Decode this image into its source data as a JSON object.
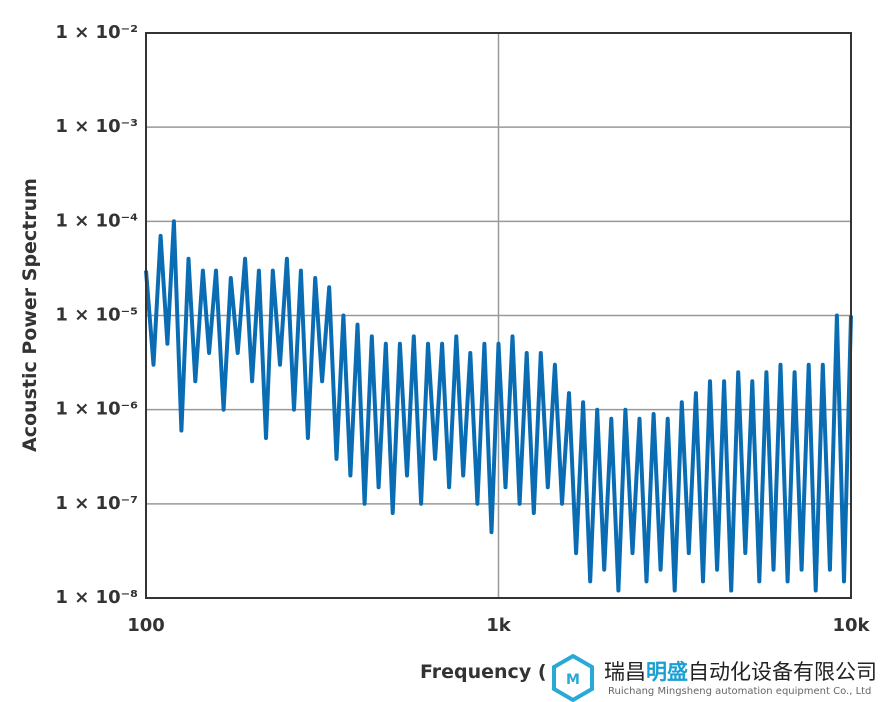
{
  "chart_data": {
    "type": "line",
    "x_label": "Frequency (Hz)",
    "y_label": "Acoustic Power Spectrum",
    "xscale": "log",
    "yscale": "log",
    "grid": true,
    "xlim": [
      100,
      10000
    ],
    "ylim": [
      1e-08,
      0.01
    ],
    "xticks": [
      100,
      {
        "value": 1000,
        "label": "1k"
      },
      {
        "value": 10000,
        "label": "10k"
      }
    ],
    "yticks": [
      {
        "value": 1e-08,
        "label": "1 × 10⁻⁸"
      },
      {
        "value": 1e-07,
        "label": "1 × 10⁻⁷"
      },
      {
        "value": 1e-06,
        "label": "1 × 10⁻⁶"
      },
      {
        "value": 1e-05,
        "label": "1 × 10⁻⁵"
      },
      {
        "value": 0.0001,
        "label": "1 × 10⁻⁴"
      },
      {
        "value": 0.001,
        "label": "1 × 10⁻³"
      },
      {
        "value": 0.01,
        "label": "1 × 10⁻²"
      }
    ],
    "color": "#0a6db3",
    "x": [
      100,
      105,
      110,
      115,
      120,
      126,
      132,
      138,
      145,
      151,
      158,
      166,
      174,
      182,
      191,
      200,
      209,
      219,
      229,
      240,
      251,
      263,
      275,
      288,
      302,
      316,
      331,
      347,
      363,
      380,
      398,
      417,
      437,
      457,
      479,
      501,
      525,
      550,
      575,
      603,
      631,
      661,
      692,
      724,
      759,
      794,
      832,
      871,
      912,
      955,
      1000,
      1047,
      1096,
      1148,
      1202,
      1259,
      1318,
      1380,
      1445,
      1514,
      1585,
      1660,
      1738,
      1820,
      1905,
      1995,
      2089,
      2188,
      2291,
      2399,
      2512,
      2630,
      2754,
      2884,
      3020,
      3162,
      3311,
      3467,
      3631,
      3802,
      3981,
      4169,
      4365,
      4571,
      4786,
      5012,
      5248,
      5495,
      5754,
      6026,
      6310,
      6607,
      6918,
      7244,
      7586,
      7943,
      8318,
      8710,
      9120,
      9550,
      10000
    ],
    "values": [
      3e-05,
      3e-06,
      7e-05,
      5e-06,
      0.0001,
      6e-07,
      4e-05,
      2e-06,
      3e-05,
      4e-06,
      3e-05,
      1e-06,
      2.5e-05,
      4e-06,
      4e-05,
      2e-06,
      3e-05,
      5e-07,
      3e-05,
      3e-06,
      4e-05,
      1e-06,
      3e-05,
      5e-07,
      2.5e-05,
      2e-06,
      2e-05,
      3e-07,
      1e-05,
      2e-07,
      8e-06,
      1e-07,
      6e-06,
      1.5e-07,
      5e-06,
      8e-08,
      5e-06,
      2e-07,
      6e-06,
      1e-07,
      5e-06,
      3e-07,
      5e-06,
      1.5e-07,
      6e-06,
      2e-07,
      4e-06,
      1e-07,
      5e-06,
      5e-08,
      5e-06,
      1.5e-07,
      6e-06,
      1e-07,
      4e-06,
      8e-08,
      4e-06,
      1.5e-07,
      3e-06,
      1e-07,
      1.5e-06,
      3e-08,
      1.2e-06,
      1.5e-08,
      1e-06,
      2e-08,
      8e-07,
      1.2e-08,
      1e-06,
      3e-08,
      8e-07,
      1.5e-08,
      9e-07,
      2e-08,
      8e-07,
      1.2e-08,
      1.2e-06,
      3e-08,
      1.5e-06,
      1.5e-08,
      2e-06,
      2e-08,
      2e-06,
      1.2e-08,
      2.5e-06,
      3e-08,
      2e-06,
      1.5e-08,
      2.5e-06,
      2e-08,
      3e-06,
      1.5e-08,
      2.5e-06,
      2e-08,
      3e-06,
      1.2e-08,
      3e-06,
      2e-08,
      1e-05,
      1.5e-08,
      1e-05
    ]
  },
  "watermark": {
    "name_a": "瑞昌",
    "name_b": "明盛",
    "name_c": "自动化设备有限公司",
    "subtitle": "Ruichang Mingsheng automation equipment Co., Ltd"
  }
}
